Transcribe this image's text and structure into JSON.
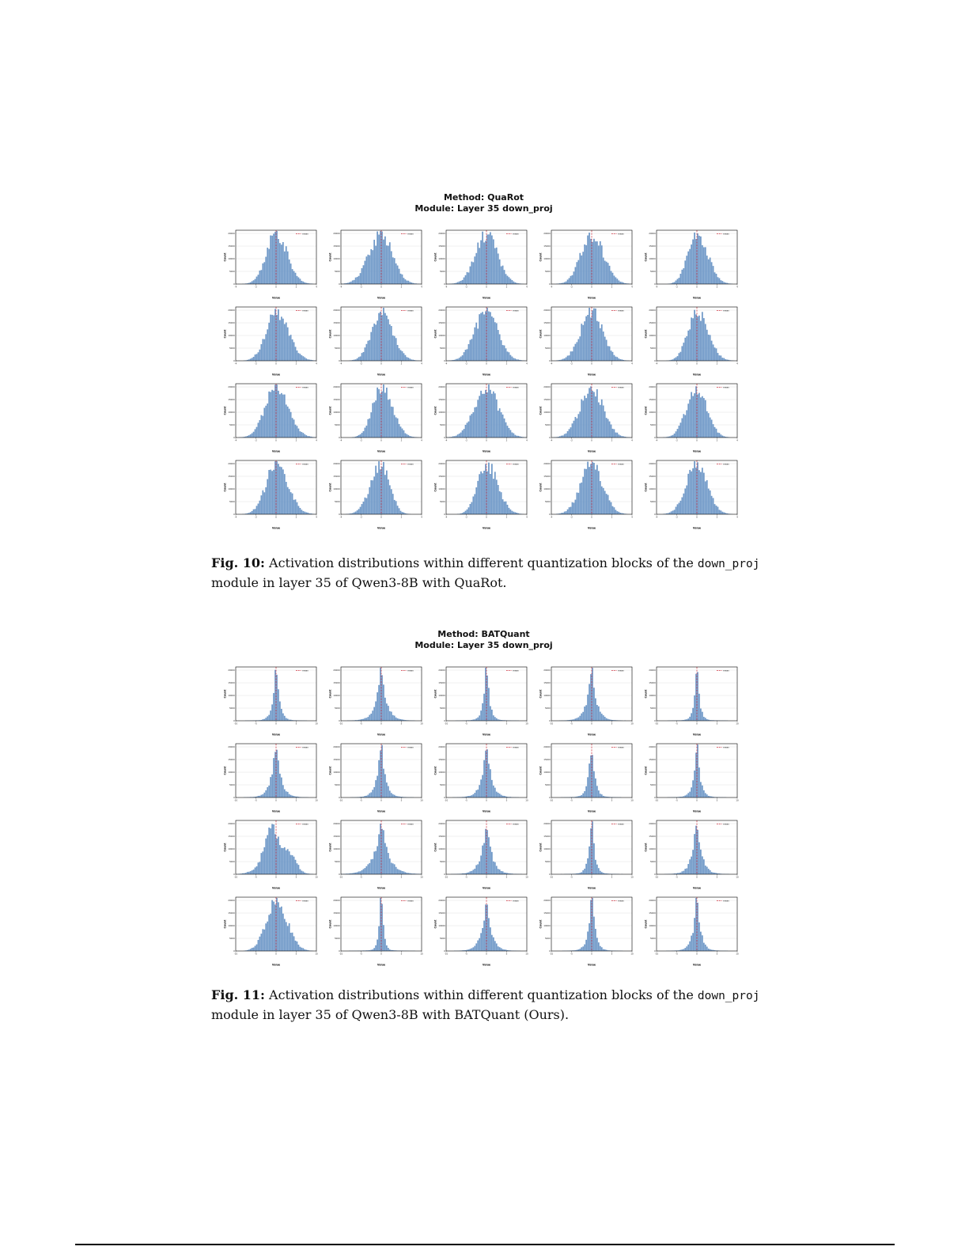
{
  "page": {
    "background": "#ffffff"
  },
  "figures": [
    {
      "title_line1": "Method: QuaRot",
      "title_line2": "Module: Layer 35 down_proj",
      "caption_label": "Fig. 10:",
      "caption_body_1": "Activation distributions within different quantization blocks of the ",
      "caption_code": "down_proj",
      "caption_body_2": " module in layer 35 of Qwen3-8B with QuaRot."
    },
    {
      "title_line1": "Method: BATQuant",
      "title_line2": "Module: Layer 35 down_proj",
      "caption_label": "Fig. 11:",
      "caption_body_1": "Activation distributions within different quantization blocks of the ",
      "caption_code": "down_proj",
      "caption_body_2": " module in layer 35 of Qwen3-8B with BATQuant (Ours)."
    }
  ],
  "chart_data": [
    {
      "type": "bar",
      "subtype": "histogram-grid",
      "figure": "Fig. 10",
      "method": "QuaRot",
      "module": "Layer 35 down_proj",
      "rows": 4,
      "cols": 5,
      "xlabel": "Value",
      "ylabel": "Count",
      "x_ticks": [
        "-4",
        "-2",
        "0",
        "2",
        "4"
      ],
      "y_ticks": [
        "0",
        "5000",
        "10000",
        "15000",
        "20000"
      ],
      "grid_on": true,
      "bar_color": "#7099c8",
      "marker_line": {
        "color": "#cc2936",
        "style": "dashed",
        "position": 0,
        "label": "mean"
      },
      "subplots": [
        {
          "row": 0,
          "col": 0,
          "shape": "gauss",
          "s": 1.05,
          "skew": 0.06,
          "peak": 17500,
          "seed": 11
        },
        {
          "row": 0,
          "col": 1,
          "shape": "gauss",
          "s": 1.18,
          "skew": -0.04,
          "peak": 16000,
          "seed": 12
        },
        {
          "row": 0,
          "col": 2,
          "shape": "gauss",
          "s": 1.1,
          "skew": 0.0,
          "peak": 20000,
          "seed": 13
        },
        {
          "row": 0,
          "col": 3,
          "shape": "gauss",
          "s": 1.12,
          "skew": 0.05,
          "peak": 20000,
          "seed": 14
        },
        {
          "row": 0,
          "col": 4,
          "shape": "gauss",
          "s": 0.98,
          "skew": 0.1,
          "peak": 20000,
          "seed": 15
        },
        {
          "row": 1,
          "col": 0,
          "shape": "gauss",
          "s": 1.1,
          "skew": 0.1,
          "peak": 20000,
          "seed": 16
        },
        {
          "row": 1,
          "col": 1,
          "shape": "gauss",
          "s": 1.05,
          "skew": 0.08,
          "peak": 17500,
          "seed": 17
        },
        {
          "row": 1,
          "col": 2,
          "shape": "gauss",
          "s": 1.15,
          "skew": 0.0,
          "peak": 15000,
          "seed": 18
        },
        {
          "row": 1,
          "col": 3,
          "shape": "gauss",
          "s": 1.1,
          "skew": 0.0,
          "peak": 20000,
          "seed": 19
        },
        {
          "row": 1,
          "col": 4,
          "shape": "gauss",
          "s": 1.0,
          "skew": 0.1,
          "peak": 20000,
          "seed": 20
        },
        {
          "row": 2,
          "col": 0,
          "shape": "gauss",
          "s": 1.15,
          "skew": 0.05,
          "peak": 20000,
          "seed": 21
        },
        {
          "row": 2,
          "col": 1,
          "shape": "gauss",
          "s": 1.0,
          "skew": 0.1,
          "peak": 17500,
          "seed": 22
        },
        {
          "row": 2,
          "col": 2,
          "shape": "gauss",
          "s": 1.2,
          "skew": 0.0,
          "peak": 15000,
          "seed": 23
        },
        {
          "row": 2,
          "col": 3,
          "shape": "gauss",
          "s": 1.15,
          "skew": 0.0,
          "peak": 15000,
          "seed": 24
        },
        {
          "row": 2,
          "col": 4,
          "shape": "gauss",
          "s": 1.0,
          "skew": 0.0,
          "peak": 20000,
          "seed": 25
        },
        {
          "row": 3,
          "col": 0,
          "shape": "gauss",
          "s": 1.1,
          "skew": 0.08,
          "peak": 17500,
          "seed": 26
        },
        {
          "row": 3,
          "col": 1,
          "shape": "gauss",
          "s": 0.95,
          "skew": -0.1,
          "peak": 20000,
          "seed": 27
        },
        {
          "row": 3,
          "col": 2,
          "shape": "gauss",
          "s": 1.0,
          "skew": 0.12,
          "peak": 20000,
          "seed": 28
        },
        {
          "row": 3,
          "col": 3,
          "shape": "gauss",
          "s": 1.1,
          "skew": 0.0,
          "peak": 20000,
          "seed": 29
        },
        {
          "row": 3,
          "col": 4,
          "shape": "gauss",
          "s": 1.05,
          "skew": 0.0,
          "peak": 17500,
          "seed": 30
        }
      ]
    },
    {
      "type": "bar",
      "subtype": "histogram-grid",
      "figure": "Fig. 11",
      "method": "BATQuant",
      "module": "Layer 35 down_proj",
      "rows": 4,
      "cols": 5,
      "xlabel": "Value",
      "ylabel": "Count",
      "x_ticks": [
        "-10",
        "-5",
        "0",
        "5",
        "10"
      ],
      "y_ticks": [
        "0",
        "5000",
        "10000",
        "15000",
        "20000"
      ],
      "grid_on": true,
      "bar_color": "#7099c8",
      "marker_line": {
        "color": "#cc2936",
        "style": "dashed",
        "position": 0,
        "label": "mean"
      },
      "subplots": [
        {
          "row": 0,
          "col": 0,
          "shape": "laplace",
          "s": 0.3,
          "peak": 20000,
          "seed": 31
        },
        {
          "row": 0,
          "col": 1,
          "shape": "laplace",
          "s": 0.5,
          "peak": 17500,
          "seed": 32
        },
        {
          "row": 0,
          "col": 2,
          "shape": "laplace",
          "s": 0.28,
          "peak": 20000,
          "seed": 33
        },
        {
          "row": 0,
          "col": 3,
          "shape": "laplace",
          "s": 0.45,
          "peak": 20000,
          "seed": 34
        },
        {
          "row": 0,
          "col": 4,
          "shape": "laplace",
          "s": 0.24,
          "peak": 20000,
          "seed": 35
        },
        {
          "row": 1,
          "col": 0,
          "shape": "laplace",
          "s": 0.45,
          "peak": 20000,
          "seed": 36
        },
        {
          "row": 1,
          "col": 1,
          "shape": "laplace",
          "s": 0.4,
          "peak": 20000,
          "seed": 37
        },
        {
          "row": 1,
          "col": 2,
          "shape": "laplace",
          "s": 0.45,
          "peak": 20000,
          "seed": 38
        },
        {
          "row": 1,
          "col": 3,
          "shape": "laplace",
          "s": 0.3,
          "peak": 17500,
          "seed": 39
        },
        {
          "row": 1,
          "col": 4,
          "shape": "laplace",
          "s": 0.3,
          "peak": 20000,
          "seed": 40
        },
        {
          "row": 2,
          "col": 0,
          "shape": "lumpy",
          "s": 1.15,
          "peak": 17500,
          "seed": 41
        },
        {
          "row": 2,
          "col": 1,
          "shape": "laplace",
          "s": 0.7,
          "peak": 17500,
          "seed": 42
        },
        {
          "row": 2,
          "col": 2,
          "shape": "laplace",
          "s": 0.5,
          "peak": 20000,
          "seed": 43
        },
        {
          "row": 2,
          "col": 3,
          "shape": "laplace",
          "s": 0.28,
          "peak": 20000,
          "seed": 44
        },
        {
          "row": 2,
          "col": 4,
          "shape": "laplace",
          "s": 0.45,
          "peak": 20000,
          "seed": 45
        },
        {
          "row": 3,
          "col": 0,
          "shape": "gauss",
          "s": 1.05,
          "skew": 0.05,
          "peak": 20000,
          "seed": 46
        },
        {
          "row": 3,
          "col": 1,
          "shape": "laplace",
          "s": 0.2,
          "peak": 20000,
          "seed": 47
        },
        {
          "row": 3,
          "col": 2,
          "shape": "laplace",
          "s": 0.45,
          "peak": 20000,
          "seed": 48
        },
        {
          "row": 3,
          "col": 3,
          "shape": "laplace",
          "s": 0.32,
          "peak": 20000,
          "seed": 49
        },
        {
          "row": 3,
          "col": 4,
          "shape": "laplace",
          "s": 0.35,
          "peak": 20000,
          "seed": 50
        }
      ]
    }
  ]
}
